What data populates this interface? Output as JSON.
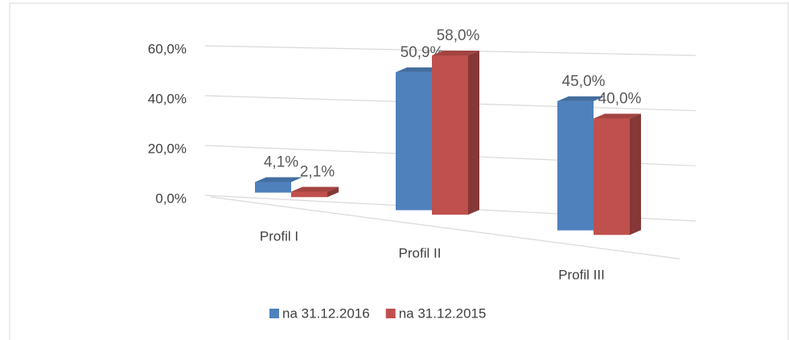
{
  "chart_data": {
    "type": "bar3d",
    "categories": [
      "Profil I",
      "Profil II",
      "Profil III"
    ],
    "series": [
      {
        "name": "na 31.12.2016",
        "color": "#4f81bd",
        "values": [
          4.1,
          50.9,
          45.0
        ],
        "value_labels": [
          "4,1%",
          "50,9%",
          "45,0%"
        ]
      },
      {
        "name": "na 31.12.2015",
        "color": "#c0504d",
        "values": [
          2.1,
          58.0,
          40.0
        ],
        "value_labels": [
          "2,1%",
          "58,0%",
          "40,0%"
        ]
      }
    ],
    "ylim": [
      0,
      60
    ],
    "yticks": [
      {
        "value": 0,
        "label": "0,0%"
      },
      {
        "value": 20,
        "label": "20,0%"
      },
      {
        "value": 40,
        "label": "40,0%"
      },
      {
        "value": 60,
        "label": "60,0%"
      }
    ],
    "grid": true,
    "legend": "bottom"
  }
}
